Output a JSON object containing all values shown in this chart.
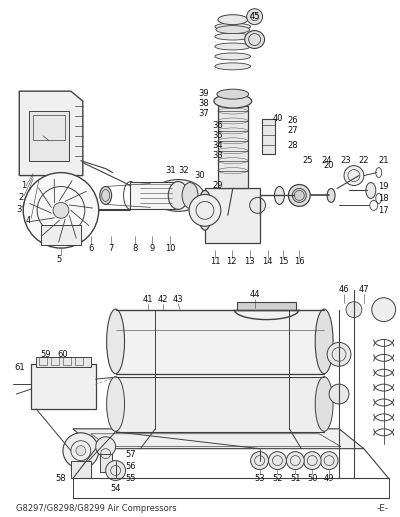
{
  "footer_left": "G8297/G8298/G8299 Air Compressors",
  "footer_right": "-E-",
  "bg_color": "#ffffff",
  "fig_width": 4.0,
  "fig_height": 5.17,
  "dpi": 100,
  "line_color": "#404040",
  "label_color": "#111111",
  "label_fontsize": 6.0
}
